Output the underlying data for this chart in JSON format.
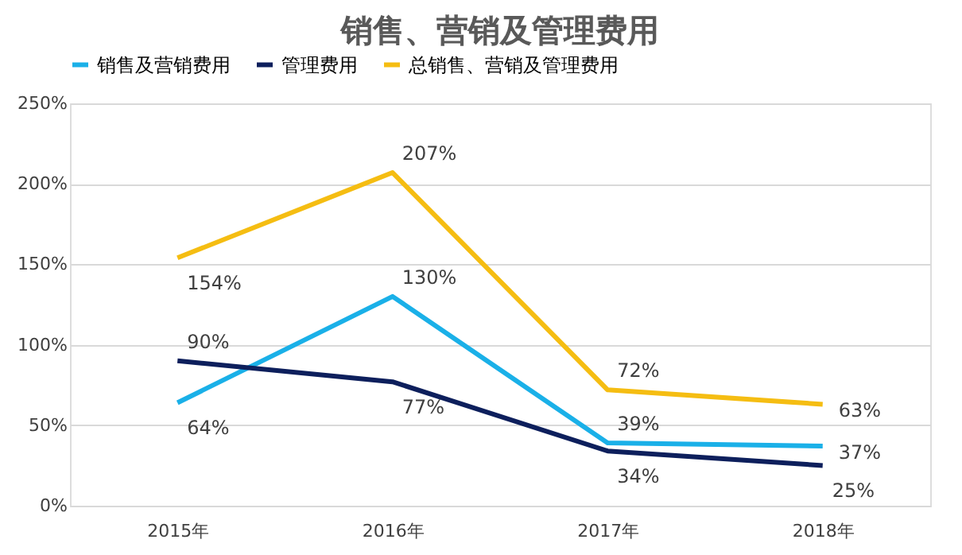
{
  "chart_data": {
    "type": "line",
    "title": "销售、营销及管理费用",
    "categories": [
      "2015年",
      "2016年",
      "2017年",
      "2018年"
    ],
    "series": [
      {
        "name": "销售及营销费用",
        "color": "#1ab0e8",
        "values": [
          64,
          130,
          39,
          37
        ],
        "value_labels": [
          "64%",
          "130%",
          "39%",
          "37%"
        ]
      },
      {
        "name": "管理费用",
        "color": "#0d1f5c",
        "values": [
          90,
          77,
          34,
          25
        ],
        "value_labels": [
          "90%",
          "77%",
          "34%",
          "25%"
        ]
      },
      {
        "name": "总销售、营销及管理费用",
        "color": "#f5bd12",
        "values": [
          154,
          207,
          72,
          63
        ],
        "value_labels": [
          "154%",
          "207%",
          "72%",
          "63%"
        ]
      }
    ],
    "ylim": [
      0,
      250
    ],
    "yticks": [
      {
        "value": 0,
        "label": "0%"
      },
      {
        "value": 50,
        "label": "50%"
      },
      {
        "value": 100,
        "label": "100%"
      },
      {
        "value": 150,
        "label": "150%"
      },
      {
        "value": 200,
        "label": "200%"
      },
      {
        "value": 250,
        "label": "250%"
      }
    ],
    "grid": "y",
    "legend": "top",
    "marker": "none",
    "line_style": "solid"
  }
}
